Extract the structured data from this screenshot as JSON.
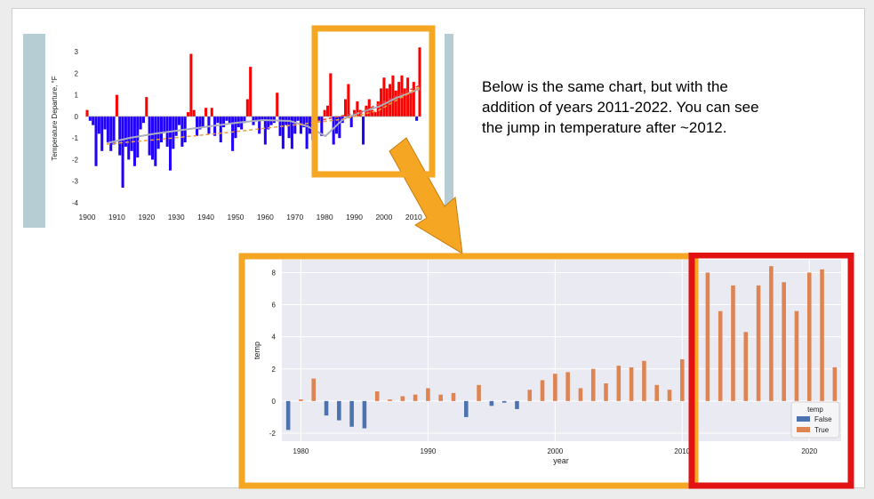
{
  "callout": {
    "text": "Below is the same chart, but with the addition of years 2011-2022. You can see the jump in temperature after ~2012."
  },
  "colors": {
    "orange_highlight": "#f5a623",
    "red_highlight": "#e21212",
    "warm_bar": "#ff0000",
    "cool_bar": "#2200ff",
    "seaborn_false": "#4c72b0",
    "seaborn_true": "#dd8452",
    "plot_bg": "#eaeaf2",
    "side_panel": "#b7cdd4"
  },
  "chart_data": [
    {
      "type": "bar",
      "ylabel": "Temperature Departure, °F",
      "xlim": [
        1900,
        2012
      ],
      "ylim": [
        -4,
        3.5
      ],
      "xticks": [
        "1900",
        "1910",
        "1920",
        "1930",
        "1940",
        "1950",
        "1960",
        "1970",
        "1980",
        "1990",
        "2000",
        "2010"
      ],
      "yticks": [
        "3",
        "2",
        "1",
        "0",
        "-1",
        "-2",
        "-3",
        "-4"
      ],
      "x": [
        1900,
        1901,
        1902,
        1903,
        1904,
        1905,
        1906,
        1907,
        1908,
        1909,
        1910,
        1911,
        1912,
        1913,
        1914,
        1915,
        1916,
        1917,
        1918,
        1919,
        1920,
        1921,
        1922,
        1923,
        1924,
        1925,
        1926,
        1927,
        1928,
        1929,
        1930,
        1931,
        1932,
        1933,
        1934,
        1935,
        1936,
        1937,
        1938,
        1939,
        1940,
        1941,
        1942,
        1943,
        1944,
        1945,
        1946,
        1947,
        1948,
        1949,
        1950,
        1951,
        1952,
        1953,
        1954,
        1955,
        1956,
        1957,
        1958,
        1959,
        1960,
        1961,
        1962,
        1963,
        1964,
        1965,
        1966,
        1967,
        1968,
        1969,
        1970,
        1971,
        1972,
        1973,
        1974,
        1975,
        1976,
        1977,
        1978,
        1979,
        1980,
        1981,
        1982,
        1983,
        1984,
        1985,
        1986,
        1987,
        1988,
        1989,
        1990,
        1991,
        1992,
        1993,
        1994,
        1995,
        1996,
        1997,
        1998,
        1999,
        2000,
        2001,
        2002,
        2003,
        2004,
        2005,
        2006,
        2007,
        2008,
        2009,
        2010,
        2011,
        2012
      ],
      "values": [
        0.3,
        -0.2,
        -0.4,
        -2.3,
        -0.8,
        -1.6,
        -0.6,
        -1.2,
        -1.6,
        -1.3,
        1.0,
        -1.8,
        -3.3,
        -1.4,
        -2.0,
        -1.6,
        -2.3,
        -1.9,
        -0.6,
        -0.3,
        0.9,
        -1.8,
        -2.0,
        -2.3,
        -1.5,
        -1.2,
        -0.7,
        -1.4,
        -2.5,
        -1.5,
        -0.9,
        -0.4,
        -1.4,
        -1.2,
        0.2,
        2.9,
        0.3,
        -0.9,
        -0.6,
        -0.5,
        0.4,
        -0.8,
        0.4,
        -0.9,
        -0.3,
        -1.2,
        -0.5,
        -0.2,
        -0.3,
        -1.6,
        -1.0,
        -0.5,
        -0.6,
        -0.3,
        0.8,
        2.3,
        -0.4,
        -0.2,
        -0.8,
        -0.2,
        -1.3,
        -0.6,
        -0.4,
        -0.3,
        1.1,
        -0.9,
        -1.5,
        -0.4,
        -1.0,
        -1.5,
        -0.8,
        -0.2,
        -0.8,
        -0.5,
        -1.5,
        -0.8,
        -1.1,
        -0.3,
        -0.2,
        -0.9,
        0.3,
        0.5,
        2.0,
        -1.3,
        -0.8,
        -1.0,
        -0.3,
        0.8,
        1.5,
        -0.5,
        0.3,
        0.7,
        0.3,
        -1.3,
        0.5,
        0.8,
        0.3,
        0.2,
        0.7,
        1.3,
        1.8,
        1.3,
        1.5,
        1.9,
        1.2,
        1.6,
        1.9,
        1.3,
        1.8,
        1.1,
        1.6,
        -0.2,
        3.2
      ]
    },
    {
      "type": "bar",
      "xlabel": "year",
      "ylabel": "temp",
      "xlim": [
        1978.5,
        2022.5
      ],
      "ylim": [
        -2.5,
        8.8
      ],
      "xticks": [
        1980,
        1990,
        2000,
        2010,
        2020
      ],
      "yticks": [
        -2,
        0,
        2,
        4,
        6,
        8
      ],
      "legend": {
        "title": "temp",
        "entries": [
          "False",
          "True"
        ],
        "position": "bottom-right"
      },
      "x": [
        1979,
        1980,
        1981,
        1982,
        1983,
        1984,
        1985,
        1986,
        1987,
        1988,
        1989,
        1990,
        1991,
        1992,
        1993,
        1994,
        1995,
        1996,
        1997,
        1998,
        1999,
        2000,
        2001,
        2002,
        2003,
        2004,
        2005,
        2006,
        2007,
        2008,
        2009,
        2010,
        2011,
        2012,
        2013,
        2014,
        2015,
        2016,
        2017,
        2018,
        2019,
        2020,
        2021,
        2022
      ],
      "values": [
        -1.8,
        0.1,
        1.4,
        -0.9,
        -1.2,
        -1.6,
        -1.7,
        0.6,
        0.1,
        0.3,
        0.4,
        0.8,
        0.4,
        0.5,
        -1.0,
        1.0,
        -0.3,
        -0.1,
        -0.5,
        0.7,
        1.3,
        1.7,
        1.8,
        0.8,
        2.0,
        1.1,
        2.2,
        2.1,
        2.5,
        1.0,
        0.7,
        2.6,
        1.8,
        8.0,
        5.6,
        7.2,
        4.3,
        7.2,
        8.4,
        7.4,
        5.6,
        8.0,
        8.2,
        2.1
      ]
    }
  ]
}
